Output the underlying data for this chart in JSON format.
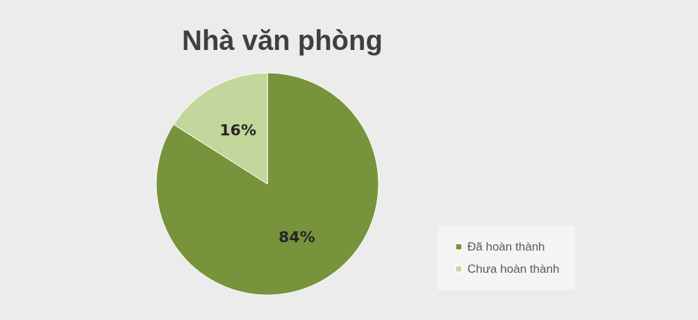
{
  "chart_data": {
    "type": "pie",
    "title": "Nhà văn phòng",
    "categories": [
      "Đã hoàn thành",
      "Chưa hoàn thành"
    ],
    "values": [
      84,
      16
    ],
    "colors": [
      "#77933c",
      "#c3d69b"
    ],
    "value_labels": [
      "84%",
      "16%"
    ],
    "legend": "bottom right"
  }
}
